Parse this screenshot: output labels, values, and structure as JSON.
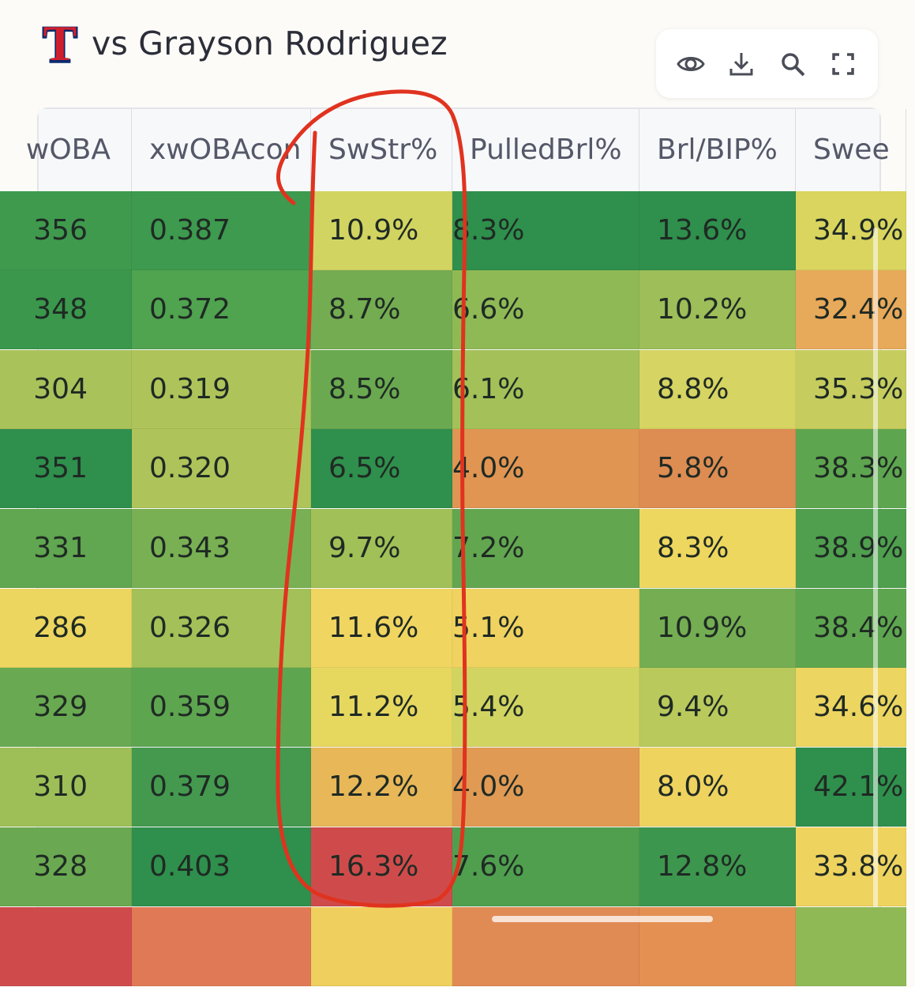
{
  "header": {
    "title": "vs Grayson Rodriguez",
    "logo_letter": "T"
  },
  "toolbar": {
    "buttons": [
      {
        "name": "eye-icon"
      },
      {
        "name": "download-icon"
      },
      {
        "name": "search-icon"
      },
      {
        "name": "fullscreen-icon"
      }
    ]
  },
  "table": {
    "columns": [
      "wOBA",
      "xwOBAcon",
      "SwStr%",
      "PulledBrl%",
      "Brl/BIP%",
      "Swee"
    ],
    "rows": [
      [
        {
          "v": "356",
          "c": "#3f9a4e"
        },
        {
          "v": "0.387",
          "c": "#3d9a4e"
        },
        {
          "v": "10.9%",
          "c": "#d2d461"
        },
        {
          "v": "8.3%",
          "c": "#2f8f4c"
        },
        {
          "v": "13.6%",
          "c": "#2f8f4c"
        },
        {
          "v": "34.9%",
          "c": "#d9d55f"
        }
      ],
      [
        {
          "v": "348",
          "c": "#3a974c"
        },
        {
          "v": "0.372",
          "c": "#50a34f"
        },
        {
          "v": "8.7%",
          "c": "#74ac51"
        },
        {
          "v": "6.6%",
          "c": "#8fb955"
        },
        {
          "v": "10.2%",
          "c": "#9dbe58"
        },
        {
          "v": "32.4%",
          "c": "#e7a95a"
        }
      ],
      [
        {
          "v": "304",
          "c": "#a9c25a"
        },
        {
          "v": "0.319",
          "c": "#aec45a"
        },
        {
          "v": "8.5%",
          "c": "#6aa950"
        },
        {
          "v": "6.1%",
          "c": "#a3c158"
        },
        {
          "v": "8.8%",
          "c": "#d6d462"
        },
        {
          "v": "35.3%",
          "c": "#c6cd5e"
        }
      ],
      [
        {
          "v": "351",
          "c": "#2f8f4c"
        },
        {
          "v": "0.320",
          "c": "#aec45a"
        },
        {
          "v": "6.5%",
          "c": "#2f8f4c"
        },
        {
          "v": "4.0%",
          "c": "#e09552"
        },
        {
          "v": "5.8%",
          "c": "#dd8c52"
        },
        {
          "v": "38.3%",
          "c": "#5ea54f"
        }
      ],
      [
        {
          "v": "331",
          "c": "#61a650"
        },
        {
          "v": "0.343",
          "c": "#79b053"
        },
        {
          "v": "9.7%",
          "c": "#a1c058"
        },
        {
          "v": "7.2%",
          "c": "#63a650"
        },
        {
          "v": "8.3%",
          "c": "#eed75f"
        },
        {
          "v": "38.9%",
          "c": "#4f9f4e"
        }
      ],
      [
        {
          "v": "286",
          "c": "#ecd65f"
        },
        {
          "v": "0.326",
          "c": "#a3c158"
        },
        {
          "v": "11.6%",
          "c": "#f0d561"
        },
        {
          "v": "5.1%",
          "c": "#efd25f"
        },
        {
          "v": "10.9%",
          "c": "#74ad52"
        },
        {
          "v": "38.4%",
          "c": "#5ea54f"
        }
      ],
      [
        {
          "v": "329",
          "c": "#69a951"
        },
        {
          "v": "0.359",
          "c": "#5ea54f"
        },
        {
          "v": "11.2%",
          "c": "#e6d75f"
        },
        {
          "v": "5.4%",
          "c": "#d2d461"
        },
        {
          "v": "9.4%",
          "c": "#b9c95c"
        },
        {
          "v": "34.6%",
          "c": "#ecd560"
        }
      ],
      [
        {
          "v": "310",
          "c": "#9ebf57"
        },
        {
          "v": "0.379",
          "c": "#44994e"
        },
        {
          "v": "12.2%",
          "c": "#e8b758"
        },
        {
          "v": "4.0%",
          "c": "#e09a54"
        },
        {
          "v": "8.0%",
          "c": "#efd35f"
        },
        {
          "v": "42.1%",
          "c": "#2f8f4c"
        }
      ],
      [
        {
          "v": "328",
          "c": "#6aa951"
        },
        {
          "v": "0.403",
          "c": "#2f8f4c"
        },
        {
          "v": "16.3%",
          "c": "#cf4b4b"
        },
        {
          "v": "7.6%",
          "c": "#4f9f4e"
        },
        {
          "v": "12.8%",
          "c": "#3d964d"
        },
        {
          "v": "33.8%",
          "c": "#efd35f"
        }
      ],
      [
        {
          "v": "",
          "c": "#cf4b4b"
        },
        {
          "v": "",
          "c": "#e07a56"
        },
        {
          "v": "",
          "c": "#efcf5d"
        },
        {
          "v": "",
          "c": "#e08a54"
        },
        {
          "v": "",
          "c": "#e39052"
        },
        {
          "v": "",
          "c": "#8fb955"
        }
      ]
    ]
  }
}
